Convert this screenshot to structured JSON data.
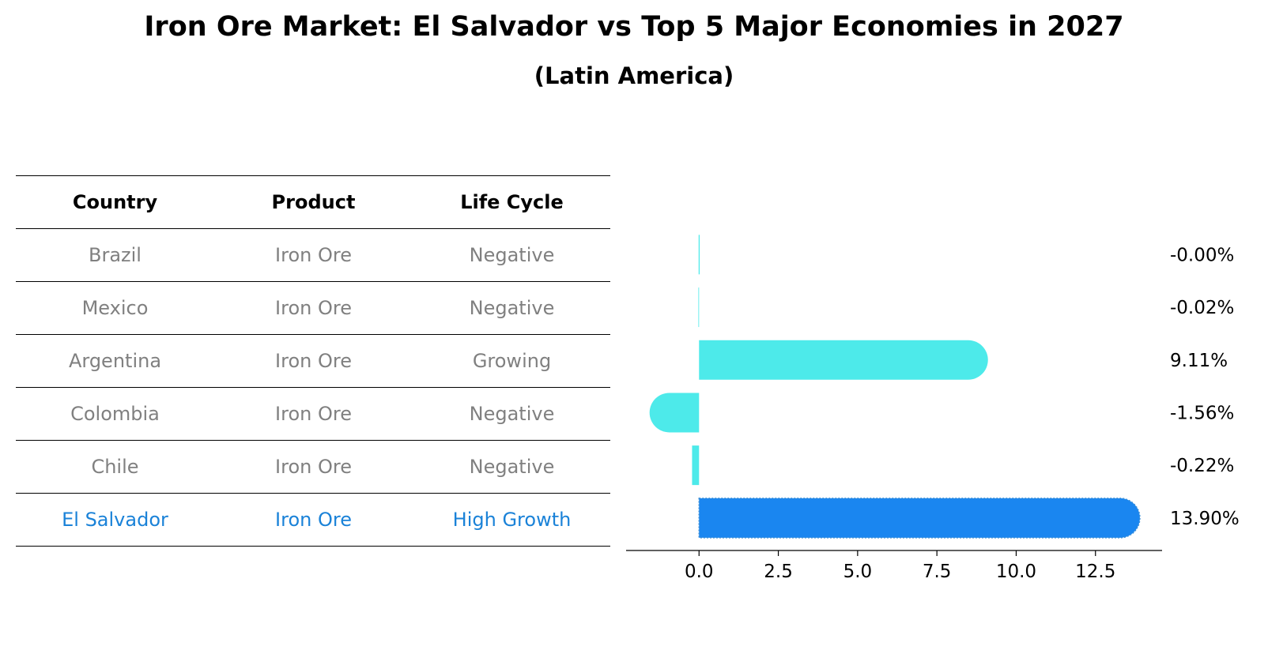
{
  "title": "Iron Ore Market: El Salvador vs Top 5 Major Economies in 2027",
  "subtitle": "(Latin America)",
  "table": {
    "headers": [
      "Country",
      "Product",
      "Life Cycle"
    ],
    "rows": [
      [
        "Brazil",
        "Iron Ore",
        "Negative"
      ],
      [
        "Mexico",
        "Iron Ore",
        "Negative"
      ],
      [
        "Argentina",
        "Iron Ore",
        "Growing"
      ],
      [
        "Colombia",
        "Iron Ore",
        "Negative"
      ],
      [
        "Chile",
        "Iron Ore",
        "Negative"
      ],
      [
        "El Salvador",
        "Iron Ore",
        "High Growth"
      ]
    ],
    "highlight_row": 5
  },
  "chart_data": {
    "type": "bar",
    "orientation": "horizontal",
    "categories": [
      "Brazil",
      "Mexico",
      "Argentina",
      "Colombia",
      "Chile",
      "El Salvador"
    ],
    "values": [
      -0.0,
      -0.02,
      9.11,
      -1.56,
      -0.22,
      13.9
    ],
    "value_labels": [
      "-0.00%",
      "-0.02%",
      "9.11%",
      "-1.56%",
      "-0.22%",
      "13.90%"
    ],
    "xlim": [
      -2.3,
      14.6
    ],
    "xticks": [
      0.0,
      2.5,
      5.0,
      7.5,
      10.0,
      12.5
    ],
    "xtick_labels": [
      "0.0",
      "2.5",
      "5.0",
      "7.5",
      "10.0",
      "12.5"
    ],
    "colors": {
      "default": "#4deaea",
      "highlight": "#1a86f0"
    },
    "highlight_index": 5,
    "grid": false,
    "legend": false
  }
}
